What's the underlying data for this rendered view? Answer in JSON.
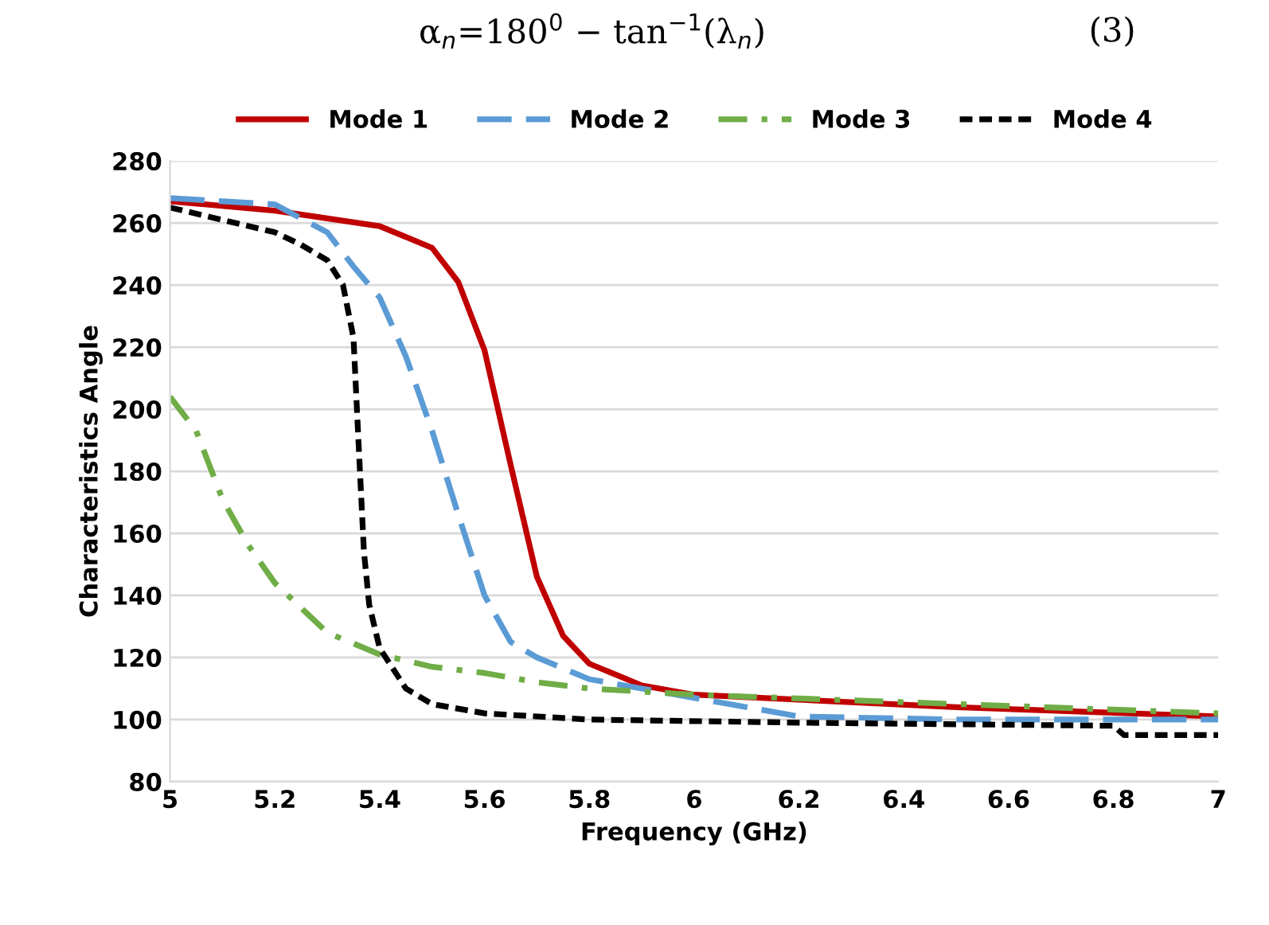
{
  "chart_data": {
    "type": "line",
    "xlabel": "Frequency (GHz)",
    "ylabel": "Characteristics Angle",
    "annotations": [
      "α$_{n}$=180$^{0}$ − tan$^{−1}$(λ$_{n}$)",
      "(3)"
    ],
    "xlim": [
      5,
      7
    ],
    "xticks": [
      5,
      5.2,
      5.4,
      5.6,
      5.8,
      6,
      6.2,
      6.4,
      6.6,
      6.8,
      7
    ],
    "ylim": [
      80,
      280
    ],
    "yticks": [
      80,
      100,
      120,
      140,
      160,
      180,
      200,
      220,
      240,
      260,
      280
    ],
    "grid": "y",
    "legend": "top",
    "marker": "none",
    "series": [
      {
        "name": "Mode 1",
        "color": "#c00000",
        "line_style": "solid",
        "x": [
          5,
          5.2,
          5.4,
          5.5,
          5.55,
          5.6,
          5.65,
          5.7,
          5.75,
          5.8,
          5.9,
          6,
          6.5,
          7
        ],
        "values": [
          267,
          264,
          259,
          252,
          241,
          219,
          182,
          146,
          127,
          118,
          111,
          108,
          104,
          101
        ]
      },
      {
        "name": "Mode 2",
        "color": "#5b9bd5",
        "line_style": "dashed",
        "x": [
          5,
          5.2,
          5.3,
          5.35,
          5.4,
          5.45,
          5.5,
          5.55,
          5.6,
          5.65,
          5.7,
          5.8,
          6,
          6.2,
          6.5,
          7
        ],
        "values": [
          268,
          266,
          257,
          246,
          236,
          217,
          193,
          166,
          140,
          125,
          120,
          113,
          107,
          101,
          100,
          100
        ]
      },
      {
        "name": "Mode 3",
        "color": "#70ad47",
        "line_style": "dashdot",
        "x": [
          5,
          5.05,
          5.1,
          5.15,
          5.2,
          5.3,
          5.4,
          5.5,
          5.6,
          5.7,
          5.8,
          6,
          6.5,
          7
        ],
        "values": [
          204,
          193,
          171,
          156,
          144,
          128,
          121,
          117,
          115,
          112,
          110,
          108,
          105,
          102
        ]
      },
      {
        "name": "Mode 4",
        "color": "#000000",
        "line_style": "dotted",
        "x": [
          5,
          5.1,
          5.2,
          5.25,
          5.3,
          5.33,
          5.35,
          5.36,
          5.37,
          5.38,
          5.4,
          5.45,
          5.5,
          5.6,
          5.8,
          6.2,
          6.8,
          6.82,
          7
        ],
        "values": [
          265,
          261,
          257,
          253,
          248,
          240,
          223,
          188,
          154,
          137,
          123,
          110,
          105,
          102,
          100,
          99,
          98,
          95,
          95
        ]
      }
    ]
  }
}
